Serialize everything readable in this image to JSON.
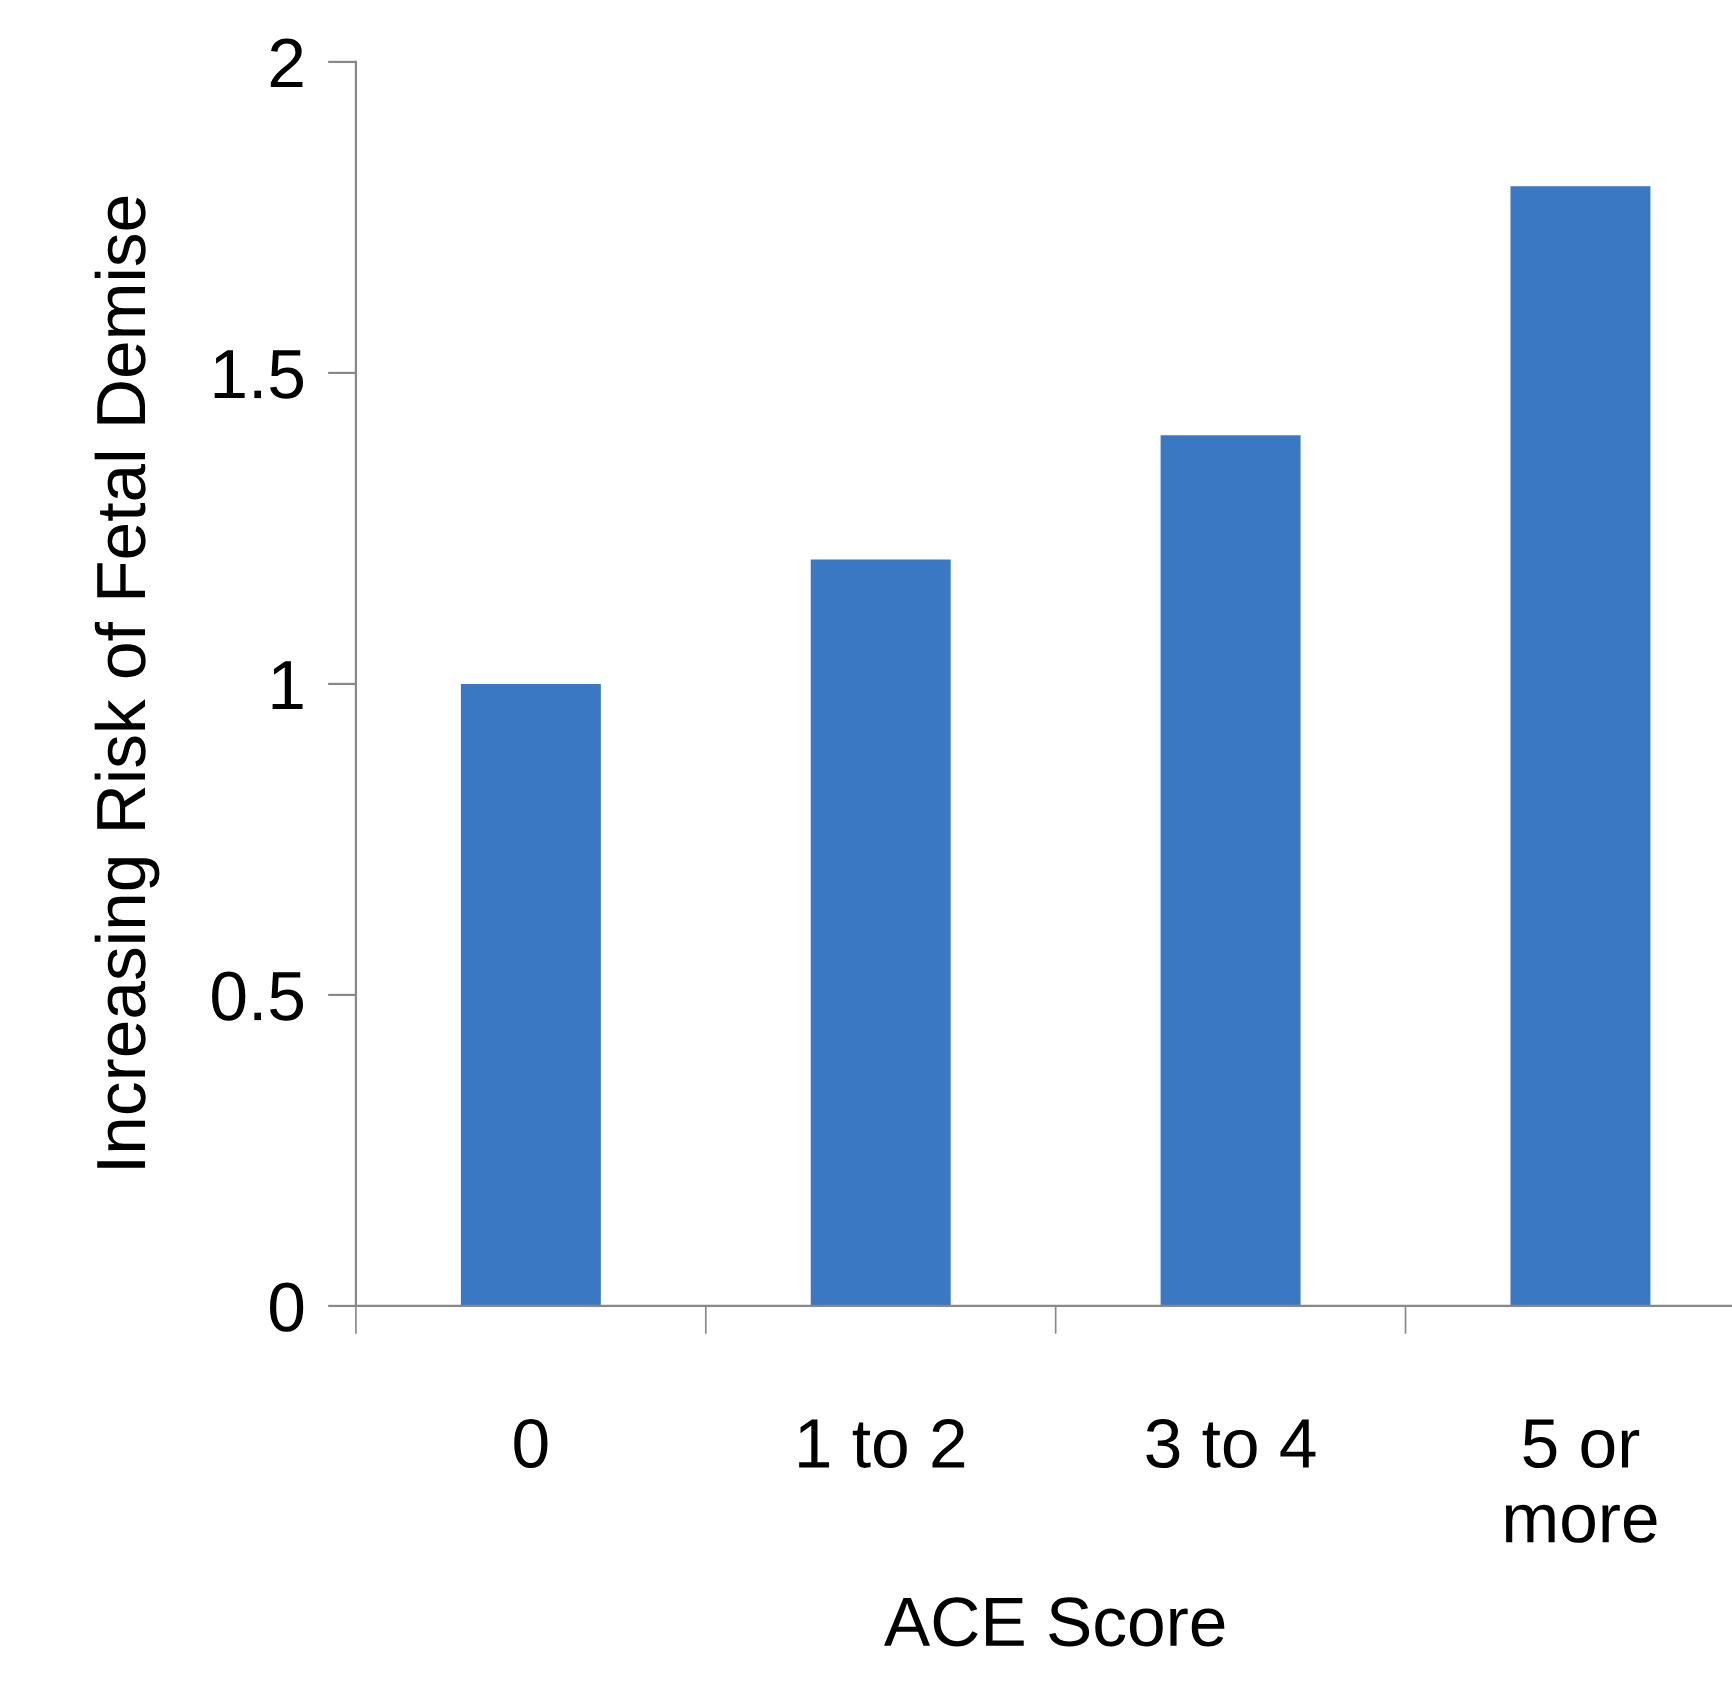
{
  "chart_data": {
    "type": "bar",
    "xlabel": "ACE Score",
    "ylabel": "Increasing Risk of Fetal Demise",
    "categories": [
      "0",
      "1 to 2",
      "3 to 4",
      "5 or\nmore"
    ],
    "values": [
      1,
      1.2,
      1.4,
      1.8
    ],
    "color": "#3a78c4",
    "ylim": [
      0,
      2
    ],
    "yticks": [
      0,
      0.5,
      1,
      1.5,
      2
    ],
    "grid": false,
    "legend": false
  }
}
